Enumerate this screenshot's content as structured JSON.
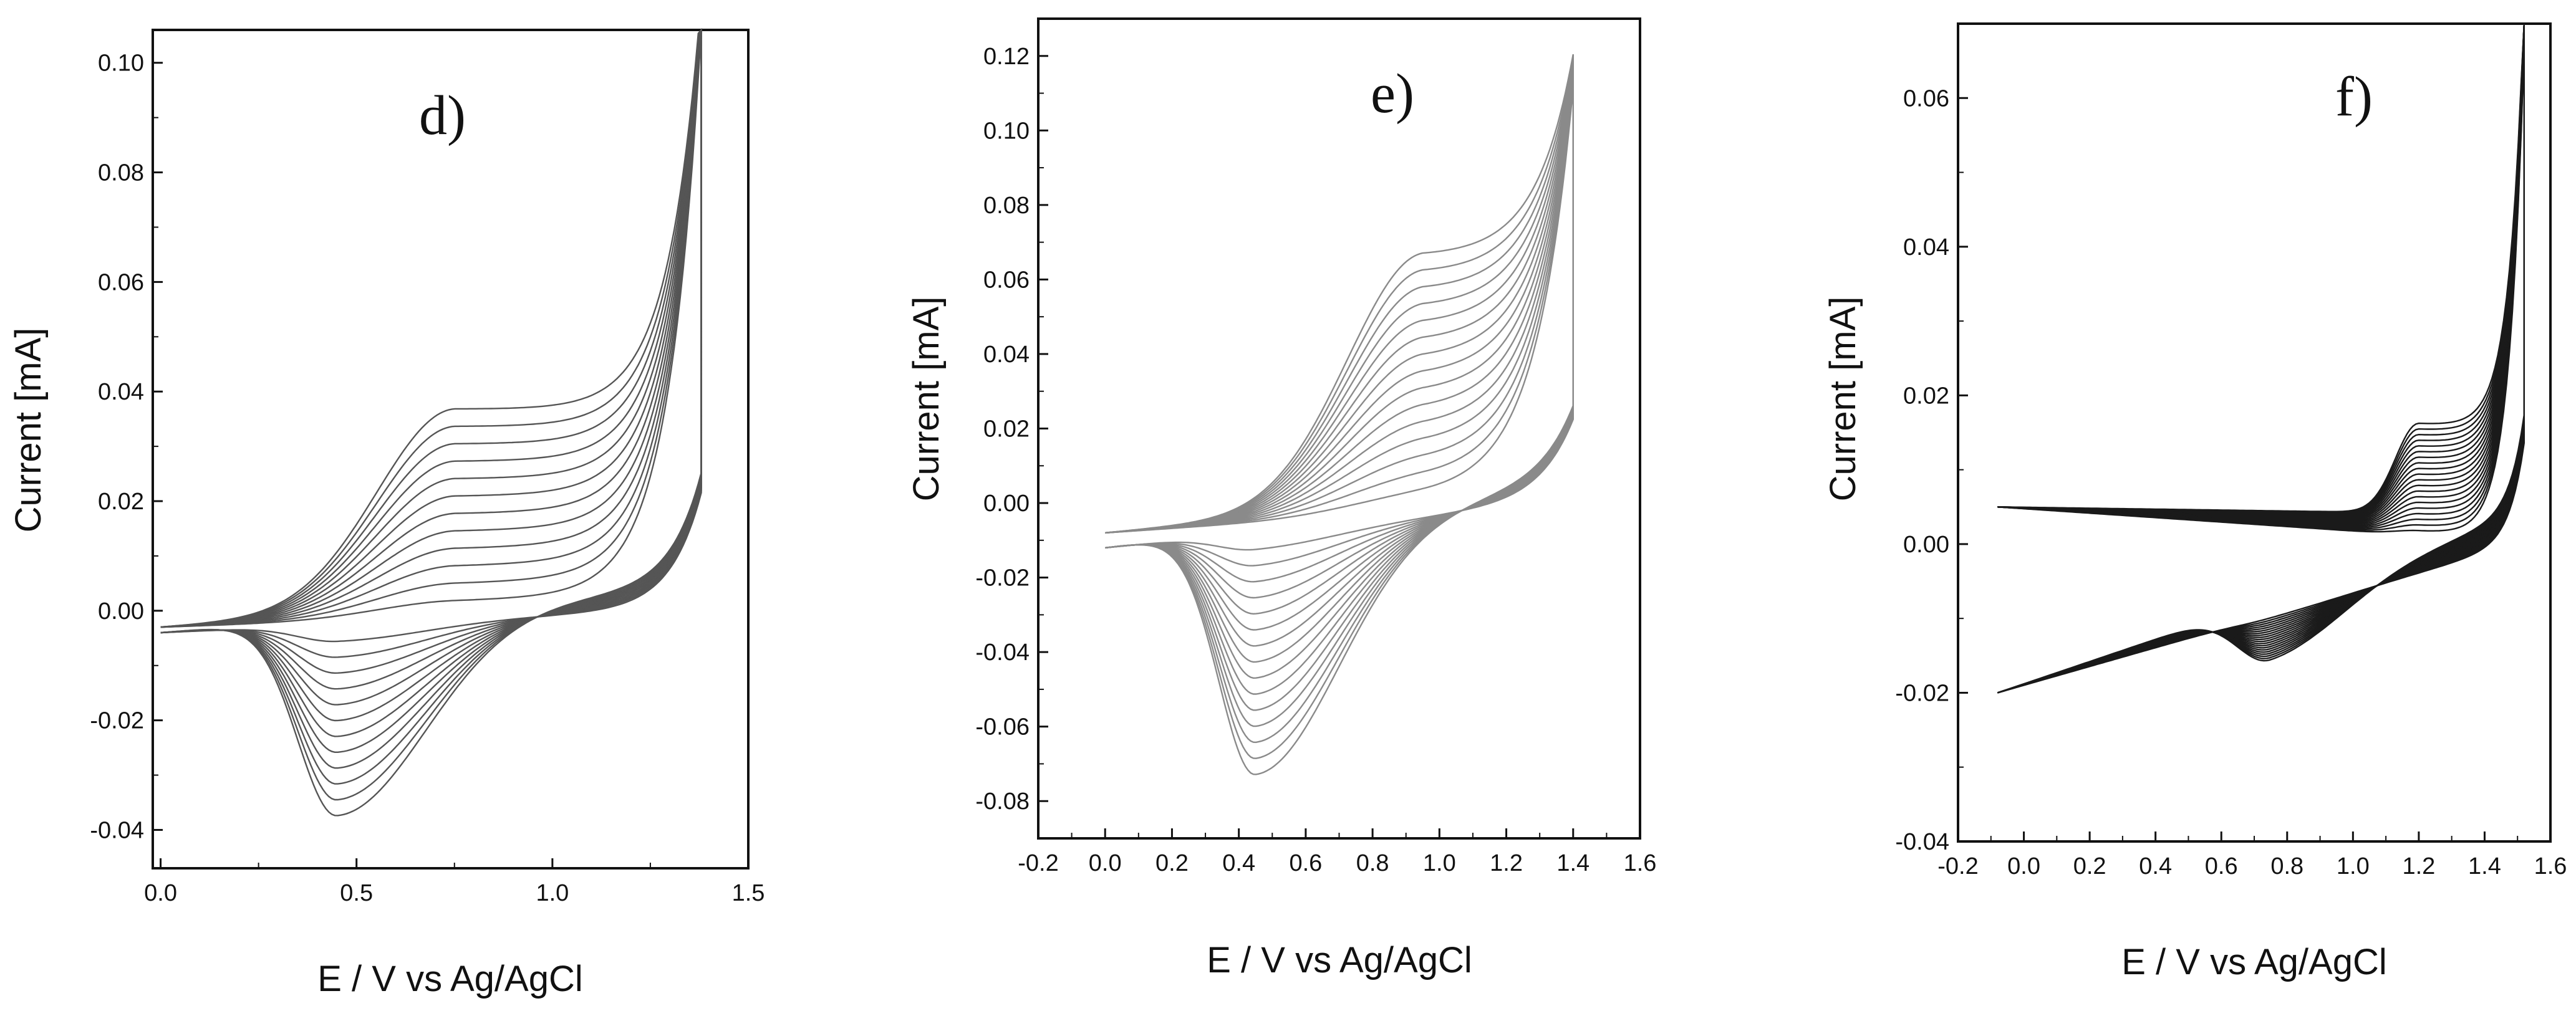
{
  "figure": {
    "panels": [
      "d",
      "e",
      "f"
    ]
  },
  "chart_data": [
    {
      "type": "line",
      "panel_label": "d)",
      "xlabel": "E / V vs Ag/AgCl",
      "ylabel": "Current [mA]",
      "xlim": [
        -0.02,
        1.5
      ],
      "ylim": [
        -0.047,
        0.106
      ],
      "xticks": [
        0.0,
        0.5,
        1.0,
        1.5
      ],
      "xtick_labels": [
        "0.0",
        "0.5",
        "1.0",
        "1.5"
      ],
      "yticks": [
        -0.04,
        -0.02,
        0.0,
        0.02,
        0.04,
        0.06,
        0.08,
        0.1
      ],
      "ytick_labels": [
        "-0.04",
        "-0.02",
        "0.00",
        "0.02",
        "0.04",
        "0.06",
        "0.08",
        "0.10"
      ],
      "line_color": "#555555",
      "cycles": 12,
      "cv_params": {
        "e_start": 0.0,
        "e_end": 1.38,
        "base_fwd_start": -0.003,
        "base_rev_start": -0.004,
        "vertex_current": 0.106,
        "exp_k": 12,
        "exp_e0": 1.08,
        "anodic_peak_e": 0.75,
        "anodic_peak_max": 0.036,
        "anodic_width": 0.28,
        "cathodic_peak_e": 0.45,
        "cathodic_peak_max": -0.036,
        "cathodic_width": 0.2
      }
    },
    {
      "type": "line",
      "panel_label": "e)",
      "xlabel": "E / V vs Ag/AgCl",
      "ylabel": "Current [mA]",
      "xlim": [
        -0.2,
        1.6
      ],
      "ylim": [
        -0.09,
        0.13
      ],
      "xticks": [
        -0.2,
        0.0,
        0.2,
        0.4,
        0.6,
        0.8,
        1.0,
        1.2,
        1.4,
        1.6
      ],
      "xtick_labels": [
        "-0.2",
        "0.0",
        "0.2",
        "0.4",
        "0.6",
        "0.8",
        "1.0",
        "1.2",
        "1.4",
        "1.6"
      ],
      "yticks": [
        -0.08,
        -0.06,
        -0.04,
        -0.02,
        0.0,
        0.02,
        0.04,
        0.06,
        0.08,
        0.1,
        0.12
      ],
      "ytick_labels": [
        "-0.08",
        "-0.06",
        "-0.04",
        "-0.02",
        "0.00",
        "0.02",
        "0.04",
        "0.06",
        "0.08",
        "0.10",
        "0.12"
      ],
      "line_color": "#8a8a8a",
      "cycles": 15,
      "cv_params": {
        "e_start": 0.0,
        "e_end": 1.4,
        "base_fwd_start": -0.008,
        "base_rev_start": -0.012,
        "vertex_current": 0.111,
        "exp_k": 9,
        "exp_e0": 1.2,
        "anodic_peak_e": 0.95,
        "anodic_peak_max": 0.066,
        "anodic_width": 0.32,
        "cathodic_peak_e": 0.45,
        "cathodic_peak_max": -0.066,
        "cathodic_width": 0.22
      }
    },
    {
      "type": "line",
      "panel_label": "f)",
      "xlabel": "E / V vs Ag/AgCl",
      "ylabel": "Current [mA]",
      "xlim": [
        -0.2,
        1.6
      ],
      "ylim": [
        -0.04,
        0.07
      ],
      "xticks": [
        -0.2,
        0.0,
        0.2,
        0.4,
        0.6,
        0.8,
        1.0,
        1.2,
        1.4,
        1.6
      ],
      "xtick_labels": [
        "-0.2",
        "0.0",
        "0.2",
        "0.4",
        "0.6",
        "0.8",
        "1.0",
        "1.2",
        "1.4",
        "1.6"
      ],
      "yticks": [
        -0.04,
        -0.02,
        0.0,
        0.02,
        0.04,
        0.06
      ],
      "ytick_labels": [
        "-0.04",
        "-0.02",
        "0.00",
        "0.02",
        "0.04",
        "0.06"
      ],
      "line_color": "#1a1a1a",
      "cycles": 20,
      "cv_params": {
        "e_start": -0.08,
        "e_end": 1.52,
        "base_fwd_start": 0.005,
        "base_rev_start": -0.02,
        "vertex_current": 0.067,
        "exp_k": 22,
        "exp_e0": 1.38,
        "anodic_peak_e": 1.2,
        "anodic_peak_max": 0.012,
        "anodic_width": 0.1,
        "cathodic_peak_e": 0.75,
        "cathodic_peak_max": -0.008,
        "cathodic_width": 0.2
      }
    }
  ]
}
